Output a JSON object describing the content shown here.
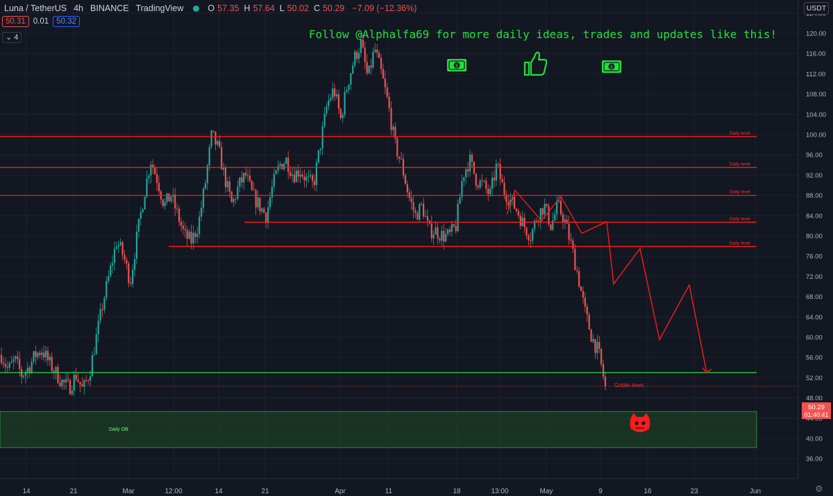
{
  "header": {
    "symbol": "Luna / TetherUS",
    "interval": "4h",
    "exchange": "BINANCE",
    "source": "TradingView",
    "o_label": "O",
    "o_value": "57.35",
    "h_label": "H",
    "h_value": "57.64",
    "l_label": "L",
    "l_value": "50.02",
    "c_label": "C",
    "c_value": "50.29",
    "change": "−7.09 (−12.36%)"
  },
  "quote": {
    "bid": "50.31",
    "spread": "0.01",
    "ask": "50.32"
  },
  "indicator_count": "4",
  "currency": "USDT",
  "price_axis_labels": [
    "124.00",
    "120.00",
    "116.00",
    "112.00",
    "108.00",
    "104.00",
    "100.00",
    "96.00",
    "92.00",
    "88.00",
    "84.00",
    "80.00",
    "76.00",
    "72.00",
    "68.00",
    "64.00",
    "60.00",
    "56.00",
    "52.00",
    "48.00",
    "44.00",
    "40.00",
    "36.00"
  ],
  "time_axis_labels": [
    "14",
    "21",
    "Mar",
    "12:00",
    "14",
    "21",
    "Apr",
    "11",
    "18",
    "13:00",
    "May",
    "9",
    "16",
    "23",
    "Jun"
  ],
  "last_price": {
    "value": "50.29",
    "countdown": "01:40:41",
    "color": "#ef5350"
  },
  "colors": {
    "up": "#26a69a",
    "down": "#ef5350",
    "level": "#ff1a1a",
    "support": "#22e03a",
    "promo": "#22e03a"
  },
  "promo_text": "Follow @Alphalfa69 for more daily ideas, trades and updates like this!",
  "promo_icons": [
    "money-icon",
    "thumbs-up-icon",
    "money-icon"
  ],
  "chart_data": {
    "type": "candlestick",
    "ylim": [
      35,
      126
    ],
    "resistance_levels": [
      {
        "label": "Daily level",
        "y": 99.6
      },
      {
        "label": "Daily level",
        "y": 93.5
      },
      {
        "label": "Daily level",
        "y": 88.0
      },
      {
        "label": "Daily level",
        "y": 82.7
      },
      {
        "label": "Daily level",
        "y": 77.9
      }
    ],
    "support_level": {
      "y": 53.0
    },
    "order_block": {
      "label": "Daily OB",
      "y_top": 45.3,
      "y_bottom": 38.2
    },
    "annotation": {
      "label": "Goblin town",
      "y": 50.29
    },
    "projection_path": [
      80.5,
      82.8,
      70.5,
      77.5,
      59.5,
      70.3,
      53.0
    ],
    "price_path": [
      56.5,
      53.5,
      55.5,
      52.5,
      54.0,
      56.5,
      57.5,
      55.0,
      53.0,
      51.0,
      50.0,
      52.5,
      49.5,
      53.0,
      60.0,
      67.0,
      73.0,
      79.0,
      76.0,
      71.0,
      80.0,
      88.0,
      95.0,
      91.0,
      86.0,
      88.0,
      84.0,
      80.0,
      79.0,
      82.0,
      90.0,
      100.0,
      97.0,
      91.0,
      86.0,
      90.0,
      92.0,
      88.0,
      86.0,
      84.0,
      90.0,
      94.0,
      95.0,
      92.0,
      93.0,
      91.0,
      90.0,
      98.0,
      106.0,
      109.0,
      103.0,
      110.0,
      115.0,
      118.0,
      111.0,
      117.0,
      112.0,
      106.0,
      98.0,
      94.0,
      88.0,
      84.0,
      86.0,
      81.0,
      81.0,
      80.0,
      80.0,
      82.0,
      92.0,
      95.0,
      91.0,
      90.0,
      88.0,
      94.0,
      89.0,
      87.0,
      85.0,
      82.0,
      80.0,
      84.0,
      86.0,
      82.0,
      86.0,
      83.0,
      78.0,
      72.0,
      65.0,
      60.0,
      57.0,
      50.3
    ]
  }
}
